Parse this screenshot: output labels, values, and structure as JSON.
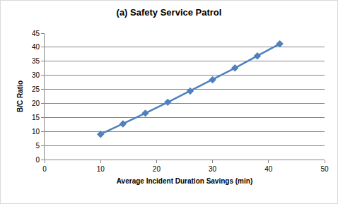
{
  "chart_data": {
    "type": "line",
    "title": "(a) Safety Service Patrol",
    "x_label": "Average Incident Duration Savings (min)",
    "y_label": "B/C Ratio",
    "x": [
      10,
      14,
      18,
      22,
      26,
      30,
      34,
      38,
      42
    ],
    "values": [
      9.0,
      12.7,
      16.5,
      20.4,
      24.4,
      28.4,
      32.6,
      36.9,
      41.2
    ],
    "color": "#4f81bd",
    "marker": "diamond",
    "line_style": "solid",
    "xlim": [
      0,
      50
    ],
    "xticks": [
      0,
      10,
      20,
      30,
      40,
      50
    ],
    "ylim": [
      0,
      45
    ],
    "yticks": [
      0,
      5,
      10,
      15,
      20,
      25,
      30,
      35,
      40,
      45
    ],
    "grid": "y"
  }
}
